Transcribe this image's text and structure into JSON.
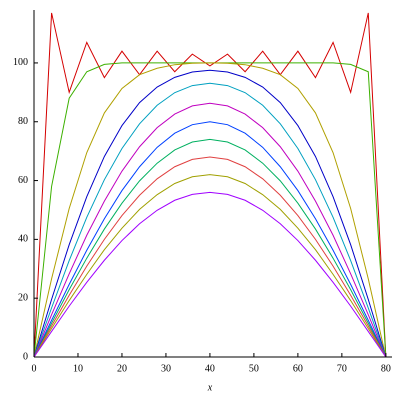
{
  "chart_data": {
    "type": "line",
    "x_label": "x",
    "x": [
      0,
      4,
      8,
      12,
      16,
      20,
      24,
      28,
      32,
      36,
      40,
      44,
      48,
      52,
      56,
      60,
      64,
      68,
      72,
      76,
      80
    ],
    "xlim": [
      0,
      81.4
    ],
    "ylim": [
      0,
      118
    ],
    "xticks": [
      0,
      10,
      20,
      30,
      40,
      50,
      60,
      70,
      80
    ],
    "yticks": [
      0,
      20,
      40,
      60,
      80,
      100
    ],
    "series": [
      {
        "color": "#d40000",
        "values": [
          0,
          117,
          90,
          107,
          95,
          104,
          96,
          104,
          97,
          103,
          99,
          103,
          97,
          104,
          96,
          104,
          95,
          107,
          90,
          117,
          0
        ]
      },
      {
        "color": "#3cb000",
        "values": [
          0,
          58,
          88,
          97,
          99.5,
          100,
          100,
          100,
          100,
          100,
          100,
          100,
          100,
          100,
          100,
          100,
          100,
          100,
          99.5,
          97,
          0
        ]
      },
      {
        "color": "#b0a000",
        "values": [
          0,
          26.6,
          50.5,
          69.5,
          83,
          91.3,
          96,
          98.2,
          99.4,
          99.9,
          100,
          99.9,
          99.4,
          98.2,
          96,
          91.3,
          83,
          69.5,
          50.5,
          26.6,
          0
        ]
      },
      {
        "color": "#0000c8",
        "values": [
          0,
          19.6,
          38.2,
          54.5,
          68.2,
          78.7,
          86.5,
          91.8,
          95.1,
          96.9,
          97.5,
          96.9,
          95.1,
          91.8,
          86.5,
          78.7,
          68.2,
          54.5,
          38.2,
          19.6,
          0
        ]
      },
      {
        "color": "#00a0c0",
        "values": [
          0,
          16.7,
          32.8,
          47.5,
          60.3,
          70.9,
          79.3,
          85.6,
          89.9,
          92.3,
          93.1,
          92.3,
          89.9,
          85.6,
          79.3,
          70.9,
          60.3,
          47.5,
          32.8,
          16.7,
          0
        ]
      },
      {
        "color": "#c000c0",
        "values": [
          0,
          14.4,
          28.3,
          41.4,
          53,
          63.2,
          71.5,
          78,
          82.6,
          85.4,
          86.3,
          85.4,
          82.6,
          78,
          71.5,
          63.2,
          53,
          41.4,
          28.3,
          14.4,
          0
        ]
      },
      {
        "color": "#0040ff",
        "values": [
          0,
          12.5,
          24.7,
          36.3,
          47,
          56.6,
          64.7,
          71.3,
          76.1,
          79,
          80,
          79,
          76.1,
          71.3,
          64.7,
          56.6,
          47,
          36.3,
          24.7,
          12.5,
          0
        ]
      },
      {
        "color": "#00b060",
        "values": [
          0,
          11.5,
          22.9,
          33.6,
          43.5,
          52.3,
          59.9,
          65.9,
          70.4,
          73.1,
          74,
          73.1,
          70.4,
          65.9,
          59.9,
          52.3,
          43.5,
          33.6,
          22.9,
          11.5,
          0
        ]
      },
      {
        "color": "#e04040",
        "values": [
          0,
          10.6,
          21,
          30.9,
          40,
          48.1,
          55,
          60.6,
          64.7,
          67.2,
          68,
          67.2,
          64.7,
          60.6,
          55,
          48.1,
          40,
          30.9,
          21,
          10.6,
          0
        ]
      },
      {
        "color": "#a0a000",
        "values": [
          0,
          9.7,
          19.2,
          28.1,
          36.5,
          43.8,
          50.2,
          55.2,
          59,
          61.3,
          62,
          61.3,
          59,
          55.2,
          50.2,
          43.8,
          36.5,
          28.1,
          19.2,
          9.7,
          0
        ]
      },
      {
        "color": "#a000ff",
        "values": [
          0,
          8.7,
          17.3,
          25.4,
          32.9,
          39.6,
          45.3,
          49.9,
          53.3,
          55.3,
          56,
          55.3,
          53.3,
          49.9,
          45.3,
          39.6,
          32.9,
          25.4,
          17.3,
          8.7,
          0
        ]
      }
    ]
  }
}
